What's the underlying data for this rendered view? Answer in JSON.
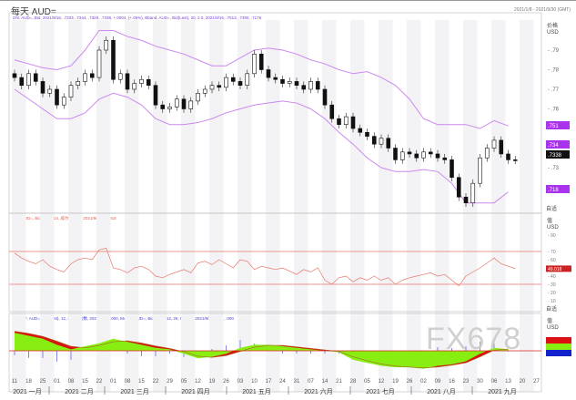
{
  "header": {
    "title": "每天 AUD=",
    "range": "2021/1/8 - 2021/9/30 (GMT)",
    "price_legend": "Ohl, AUD=, Bid, 2021/9/16, .7333, .7344, .7329, .7338, +.0004, (+.05%), Bband, AUD=, Bid(Last), 20, 2.0, 2021/9/16, .7513, .7390, .7176",
    "rsi_legend": "RSI, AUD=, Bid(Last), 14, 威尔德平滑, 2021/9/16, 49.018",
    "macd_legend": "MACDF, AUD=, Bid(Last), 12, 26, 9, 指数, 2021/9/16, .000, MACD, AUD=, Bid(Last), 12, 26, 9, 指数, 2021/9/16, .000, .000"
  },
  "axis": {
    "price_unit": "价格\nUSD",
    "rsi_unit": "值\nUSD",
    "macd_unit": "值\nUSD",
    "auto_label": "自适",
    "price_ticks": [
      ".79",
      ".78",
      ".77",
      ".76",
      ".73"
    ],
    "price_tags": [
      ".751",
      ".734",
      ".7338",
      ".718"
    ],
    "rsi_ticks": [
      "90",
      "70",
      "60",
      "40",
      "30",
      "20",
      "10"
    ],
    "rsi_tag": "49.018",
    "date_ticks": [
      "11",
      "18",
      "25",
      "01",
      "08",
      "15",
      "22",
      "01",
      "08",
      "15",
      "22",
      "29",
      "05",
      "12",
      "19",
      "26",
      "03",
      "10",
      "17",
      "24",
      "31",
      "07",
      "14",
      "21",
      "28",
      "05",
      "12",
      "19",
      "26",
      "02",
      "09",
      "16",
      "23",
      "30",
      "06",
      "13",
      "20",
      "27"
    ],
    "months": [
      "2021 一月",
      "2021 二月",
      "2021 三月",
      "2021 四月",
      "2021 五月",
      "2021 六月",
      "2021 七月",
      "2021 八月",
      "2021 九月"
    ]
  },
  "watermark": "FX678",
  "colors": {
    "band": "#cc88ee",
    "rsi": "#e8756a",
    "macd_fill": "#88ee11",
    "macd_neg": "#dd1111",
    "hist": "#6666dd",
    "tag": "#aa33ee"
  },
  "chart_data": [
    {
      "type": "candlestick",
      "title": "每天 AUD=",
      "ylim": [
        0.705,
        0.805
      ],
      "close": [
        0.776,
        0.772,
        0.778,
        0.774,
        0.768,
        0.77,
        0.762,
        0.766,
        0.772,
        0.774,
        0.778,
        0.776,
        0.79,
        0.795,
        0.775,
        0.778,
        0.77,
        0.773,
        0.775,
        0.772,
        0.762,
        0.76,
        0.761,
        0.765,
        0.76,
        0.764,
        0.768,
        0.77,
        0.772,
        0.771,
        0.776,
        0.774,
        0.772,
        0.778,
        0.788,
        0.78,
        0.776,
        0.775,
        0.773,
        0.774,
        0.772,
        0.77,
        0.774,
        0.77,
        0.762,
        0.755,
        0.752,
        0.756,
        0.75,
        0.748,
        0.746,
        0.742,
        0.745,
        0.74,
        0.734,
        0.738,
        0.737,
        0.735,
        0.738,
        0.737,
        0.735,
        0.734,
        0.725,
        0.715,
        0.712,
        0.722,
        0.735,
        0.74,
        0.744,
        0.737,
        0.734,
        0.7338
      ],
      "bband_upper": [
        0.785,
        0.783,
        0.781,
        0.78,
        0.782,
        0.79,
        0.8,
        0.8,
        0.797,
        0.795,
        0.792,
        0.79,
        0.788,
        0.785,
        0.782,
        0.782,
        0.786,
        0.79,
        0.791,
        0.79,
        0.788,
        0.785,
        0.783,
        0.78,
        0.778,
        0.779,
        0.776,
        0.772,
        0.765,
        0.755,
        0.752,
        0.752,
        0.752,
        0.75,
        0.754,
        0.7513
      ],
      "bband_lower": [
        0.77,
        0.765,
        0.76,
        0.755,
        0.755,
        0.758,
        0.765,
        0.768,
        0.766,
        0.762,
        0.755,
        0.752,
        0.752,
        0.753,
        0.755,
        0.758,
        0.76,
        0.762,
        0.763,
        0.764,
        0.763,
        0.76,
        0.755,
        0.748,
        0.742,
        0.735,
        0.73,
        0.728,
        0.728,
        0.729,
        0.728,
        0.722,
        0.712,
        0.712,
        0.712,
        0.7176
      ]
    },
    {
      "type": "line",
      "title": "RSI 14",
      "ylim": [
        0,
        100
      ],
      "levels": [
        30,
        70
      ],
      "values": [
        68,
        62,
        58,
        55,
        60,
        52,
        48,
        45,
        55,
        60,
        62,
        60,
        72,
        74,
        50,
        48,
        44,
        50,
        52,
        48,
        40,
        38,
        42,
        45,
        48,
        44,
        56,
        58,
        54,
        60,
        55,
        50,
        60,
        58,
        48,
        52,
        50,
        48,
        50,
        46,
        42,
        48,
        45,
        50,
        35,
        30,
        38,
        40,
        33,
        38,
        35,
        40,
        35,
        38,
        30,
        35,
        38,
        40,
        42,
        44,
        40,
        42,
        35,
        28,
        40,
        45,
        50,
        56,
        62,
        55,
        52,
        49.018
      ]
    },
    {
      "type": "area",
      "title": "MACD 12,26,9",
      "macd": [
        6,
        5,
        4,
        2,
        0.5,
        1.5,
        2.5,
        4,
        3,
        2,
        1,
        0.5,
        -1,
        -2.5,
        -2,
        -1,
        1,
        2,
        2,
        1.5,
        1,
        0.5,
        0,
        -0.5,
        -3,
        -4,
        -5,
        -5.5,
        -5.5,
        -6,
        -5,
        -4.5,
        -3.5,
        -1,
        1,
        0.5
      ],
      "signal": [
        6.5,
        5.8,
        4.8,
        3.2,
        1.5,
        1,
        1.8,
        3,
        3.3,
        2.6,
        1.6,
        0.8,
        -0.3,
        -1.8,
        -2.2,
        -1.6,
        -0.2,
        1.2,
        1.8,
        1.8,
        1.3,
        0.8,
        0.3,
        -0.2,
        -2,
        -3.3,
        -4.4,
        -5.1,
        -5.4,
        -5.7,
        -5.4,
        -4.8,
        -4,
        -2,
        0.2,
        0.6
      ]
    }
  ]
}
